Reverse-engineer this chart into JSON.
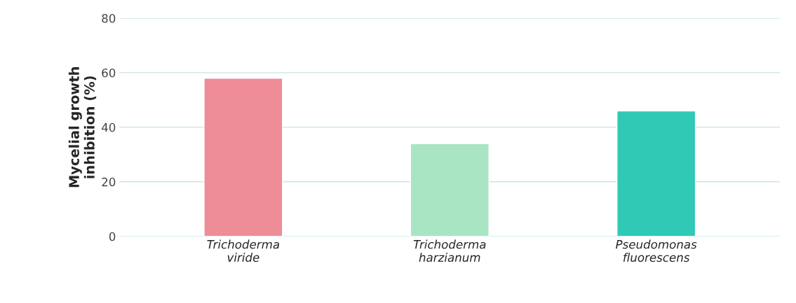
{
  "chart_data": {
    "type": "bar",
    "ylabel": "Mycelial growth\ninhibition (%)",
    "categories": [
      "Trichoderma\nviride",
      "Trichoderma\nharzianum",
      "Pseudomonas\nfluorescens"
    ],
    "values": [
      58,
      34,
      46
    ],
    "colors": [
      "#ee8c98",
      "#a9e5c3",
      "#2fc9b6"
    ],
    "ylim": [
      0,
      80
    ],
    "yticks": [
      0,
      20,
      40,
      60,
      80
    ],
    "grid": "y",
    "legend": false
  }
}
